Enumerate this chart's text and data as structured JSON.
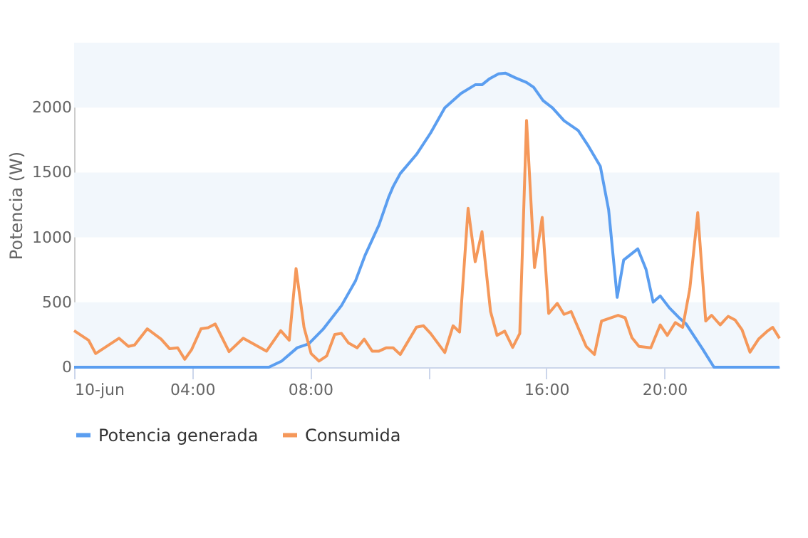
{
  "chart_data": {
    "type": "line",
    "ylabel": "Potencia (W)",
    "xlim": [
      0,
      23.9
    ],
    "ylim": [
      0,
      2500
    ],
    "xticks": [
      {
        "value": 0,
        "label": "10-jun"
      },
      {
        "value": 4,
        "label": "04:00"
      },
      {
        "value": 8,
        "label": "08:00"
      },
      {
        "value": 12,
        "label": null
      },
      {
        "value": 16,
        "label": "16:00"
      },
      {
        "value": 20,
        "label": "20:00"
      }
    ],
    "yticks": [
      0,
      500,
      1000,
      1500,
      2000
    ],
    "grid": false,
    "legend": "bottom",
    "line_style": "solid",
    "marker": "none",
    "bands": [
      {
        "axis": "y",
        "from": 0,
        "to": 500,
        "color": "#f2f7fc"
      },
      {
        "axis": "y",
        "from": 1000,
        "to": 1500,
        "color": "#f2f7fc"
      },
      {
        "axis": "y",
        "from": 2000,
        "to": 2500,
        "color": "#f2f7fc"
      }
    ],
    "series": [
      {
        "name": "Potencia generada",
        "color": "#5b9ef0",
        "x": [
          0,
          6.6,
          7.03,
          7.56,
          7.95,
          8.43,
          9.06,
          9.54,
          9.86,
          10.33,
          10.65,
          10.81,
          11.05,
          11.6,
          12.08,
          12.56,
          13.11,
          13.59,
          13.82,
          14.06,
          14.38,
          14.62,
          14.94,
          15.33,
          15.57,
          15.89,
          16.21,
          16.6,
          17.08,
          17.4,
          17.83,
          18.11,
          18.4,
          18.62,
          19.1,
          19.38,
          19.62,
          19.86,
          20.17,
          20.49,
          20.73,
          21.29,
          21.68,
          23.9
        ],
        "values": [
          0,
          0,
          47,
          150,
          180,
          291,
          475,
          668,
          863,
          1096,
          1306,
          1392,
          1492,
          1639,
          1805,
          1998,
          2109,
          2176,
          2176,
          2220,
          2260,
          2265,
          2231,
          2194,
          2157,
          2054,
          1998,
          1899,
          1824,
          1713,
          1547,
          1214,
          538,
          826,
          912,
          752,
          501,
          549,
          457,
          383,
          335,
          142,
          0,
          0
        ]
      },
      {
        "name": "Consumida",
        "color": "#f5985a",
        "x": [
          0,
          0.49,
          0.73,
          1.52,
          1.84,
          2.05,
          2.48,
          2.95,
          3.24,
          3.51,
          3.75,
          3.98,
          4.3,
          4.54,
          4.78,
          5.25,
          5.73,
          6.52,
          7,
          7.29,
          7.52,
          7.79,
          8.03,
          8.3,
          8.56,
          8.83,
          9.06,
          9.3,
          9.59,
          9.83,
          10.1,
          10.33,
          10.57,
          10.81,
          11.05,
          11.6,
          11.84,
          12.08,
          12.56,
          12.84,
          13.06,
          13.35,
          13.59,
          13.82,
          14.11,
          14.33,
          14.59,
          14.86,
          15.1,
          15.33,
          15.6,
          15.86,
          16.08,
          16.37,
          16.6,
          16.84,
          17.35,
          17.63,
          17.87,
          18.43,
          18.67,
          18.9,
          19.14,
          19.54,
          19.86,
          20.1,
          20.37,
          20.62,
          20.86,
          21.13,
          21.4,
          21.6,
          21.89,
          22.16,
          22.4,
          22.63,
          22.9,
          23.19,
          23.51,
          23.67,
          23.9
        ],
        "values": [
          282,
          208,
          105,
          223,
          160,
          171,
          296,
          216,
          142,
          149,
          61,
          135,
          296,
          304,
          333,
          120,
          223,
          124,
          282,
          208,
          760,
          307,
          105,
          47,
          87,
          252,
          260,
          186,
          149,
          216,
          124,
          124,
          149,
          149,
          98,
          308,
          319,
          260,
          113,
          319,
          271,
          1224,
          812,
          1044,
          429,
          245,
          278,
          153,
          260,
          1901,
          768,
          1154,
          414,
          492,
          407,
          429,
          160,
          98,
          356,
          400,
          381,
          227,
          160,
          149,
          326,
          245,
          344,
          307,
          602,
          1191,
          356,
          400,
          326,
          392,
          363,
          289,
          116,
          216,
          282,
          307,
          223
        ]
      }
    ]
  }
}
